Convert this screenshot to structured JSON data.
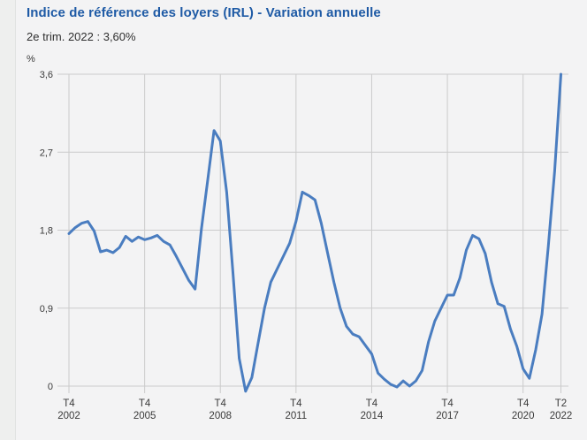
{
  "page": {
    "background_color": "#f3f3f4",
    "accent_color": "#1e5aa5"
  },
  "header": {
    "title": "Indice de référence des loyers (IRL) - Variation annuelle",
    "subtitle": "2e trim. 2022 : 3,60%"
  },
  "chart_data": {
    "type": "line",
    "title": "Indice de référence des loyers (IRL) - Variation annuelle",
    "subtitle": "2e trim. 2022 : 3,60%",
    "unit_label": "%",
    "ylim": [
      0,
      3.6
    ],
    "grid": true,
    "line_color": "#4a7dc0",
    "gridline_color": "#cbcbcb",
    "frequency": "quarterly",
    "x_start": "T4 2002",
    "x_end": "T2 2022",
    "latest_point": {
      "label": "T2 2022",
      "value": 3.6
    },
    "y_ticks": [
      {
        "v": 0.0,
        "label": "0"
      },
      {
        "v": 0.9,
        "label": "0,9"
      },
      {
        "v": 1.8,
        "label": "1,8"
      },
      {
        "v": 2.7,
        "label": "2,7"
      },
      {
        "v": 3.6,
        "label": "3,6"
      }
    ],
    "x_ticks": [
      {
        "i": 0,
        "line1": "T4",
        "line2": "2002"
      },
      {
        "i": 12,
        "line1": "T4",
        "line2": "2005"
      },
      {
        "i": 24,
        "line1": "T4",
        "line2": "2008"
      },
      {
        "i": 36,
        "line1": "T4",
        "line2": "2011"
      },
      {
        "i": 48,
        "line1": "T4",
        "line2": "2014"
      },
      {
        "i": 60,
        "line1": "T4",
        "line2": "2017"
      },
      {
        "i": 72,
        "line1": "T4",
        "line2": "2020"
      },
      {
        "i": 78,
        "line1": "T2",
        "line2": "2022"
      }
    ],
    "values": [
      1.76,
      1.83,
      1.88,
      1.9,
      1.79,
      1.55,
      1.57,
      1.54,
      1.6,
      1.73,
      1.67,
      1.72,
      1.69,
      1.71,
      1.74,
      1.67,
      1.63,
      1.5,
      1.36,
      1.22,
      1.12,
      1.81,
      2.38,
      2.95,
      2.83,
      2.24,
      1.31,
      0.32,
      -0.06,
      0.1,
      0.5,
      0.9,
      1.2,
      1.35,
      1.5,
      1.65,
      1.9,
      2.24,
      2.2,
      2.15,
      1.88,
      1.54,
      1.2,
      0.9,
      0.69,
      0.6,
      0.57,
      0.47,
      0.37,
      0.15,
      0.08,
      0.02,
      -0.01,
      0.06,
      0.0,
      0.06,
      0.18,
      0.51,
      0.75,
      0.9,
      1.05,
      1.05,
      1.25,
      1.57,
      1.74,
      1.7,
      1.53,
      1.2,
      0.95,
      0.92,
      0.66,
      0.46,
      0.2,
      0.09,
      0.42,
      0.83,
      1.61,
      2.48,
      3.6
    ]
  }
}
